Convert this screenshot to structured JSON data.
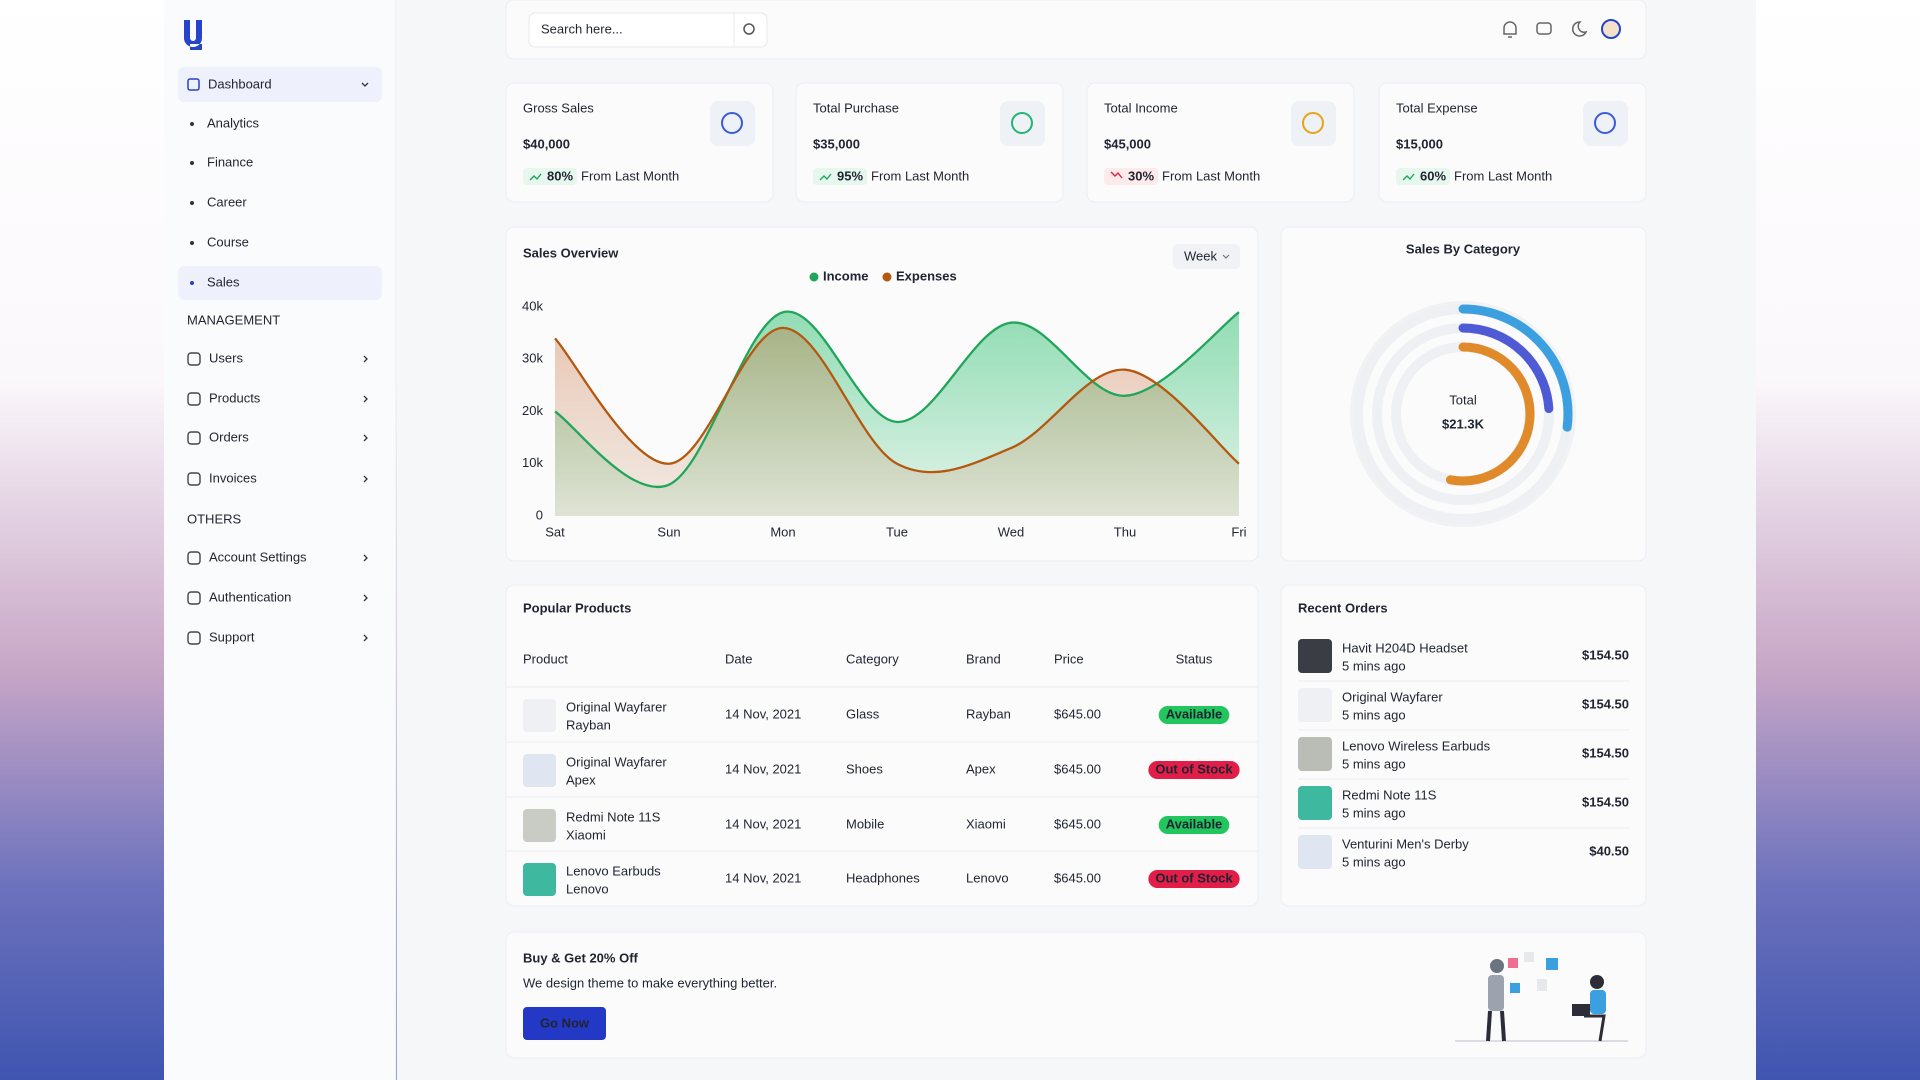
{
  "nav": {
    "dashboard": "Dashboard",
    "dashboard_items": [
      "Analytics",
      "Finance",
      "Career",
      "Course",
      "Sales"
    ],
    "management_heading": "MANAGEMENT",
    "management_items": [
      "Users",
      "Products",
      "Orders",
      "Invoices"
    ],
    "others_heading": "OTHERS",
    "others_items": [
      "Account Settings",
      "Authentication",
      "Support"
    ]
  },
  "header": {
    "search_placeholder": "Search here..."
  },
  "stats": [
    {
      "label": "Gross Sales",
      "value": "$40,000",
      "change": "80%",
      "trend": "up",
      "note": "From Last Month",
      "icon_color": "#3b5bdb"
    },
    {
      "label": "Total Purchase",
      "value": "$35,000",
      "change": "95%",
      "trend": "up",
      "note": "From Last Month",
      "icon_color": "#22b573"
    },
    {
      "label": "Total Income",
      "value": "$45,000",
      "change": "30%",
      "trend": "down",
      "note": "From Last Month",
      "icon_color": "#e8a317"
    },
    {
      "label": "Total Expense",
      "value": "$15,000",
      "change": "60%",
      "trend": "up",
      "note": "From Last Month",
      "icon_color": "#3b5bdb"
    }
  ],
  "chart_data": [
    {
      "type": "area",
      "title": "Sales Overview",
      "period": "Week",
      "x": [
        "Sat",
        "Sun",
        "Mon",
        "Tue",
        "Wed",
        "Thu",
        "Fri"
      ],
      "series": [
        {
          "name": "Income",
          "color": "#22a55a",
          "values": [
            20000,
            6000,
            39000,
            18000,
            37000,
            23000,
            39000
          ]
        },
        {
          "name": "Expenses",
          "color": "#b4580f",
          "values": [
            34000,
            10000,
            36000,
            10000,
            13000,
            28000,
            10000
          ]
        }
      ],
      "ylim": [
        0,
        40000
      ],
      "yticks": [
        0,
        {
          "value": 10000,
          "label": "10k"
        },
        {
          "value": 20000,
          "label": "20k"
        },
        {
          "value": 30000,
          "label": "30k"
        },
        {
          "value": 40000,
          "label": "40k"
        }
      ]
    },
    {
      "type": "donut",
      "title": "Sales By Category",
      "center_label": "Total",
      "total_label": "$21.3K",
      "values": [
        27,
        24,
        53
      ],
      "colors": [
        "#3b9fe0",
        "#4f5bd5",
        "#e08a2a"
      ]
    }
  ],
  "popular_products": {
    "title": "Popular Products",
    "columns": [
      "Product",
      "Date",
      "Category",
      "Brand",
      "Price",
      "Status"
    ],
    "rows": [
      {
        "name": "Original Wayfarer",
        "sub": "Rayban",
        "date": "14 Nov, 2021",
        "category": "Glass",
        "brand": "Rayban",
        "price": "$645.00",
        "status": "Available",
        "status_color": "#22c55e"
      },
      {
        "name": "Original Wayfarer",
        "sub": "Apex",
        "date": "14 Nov, 2021",
        "category": "Shoes",
        "brand": "Apex",
        "price": "$645.00",
        "status": "Out of Stock",
        "status_color": "#e11d48"
      },
      {
        "name": "Redmi Note 11S",
        "sub": "Xiaomi",
        "date": "14 Nov, 2021",
        "category": "Mobile",
        "brand": "Xiaomi",
        "price": "$645.00",
        "status": "Available",
        "status_color": "#22c55e"
      },
      {
        "name": "Lenovo Earbuds",
        "sub": "Lenovo",
        "date": "14 Nov, 2021",
        "category": "Headphones",
        "brand": "Lenovo",
        "price": "$645.00",
        "status": "Out of Stock",
        "status_color": "#e11d48"
      }
    ]
  },
  "recent_orders": {
    "title": "Recent Orders",
    "items": [
      {
        "name": "Havit H204D Headset",
        "time": "5 mins ago",
        "price": "$154.50"
      },
      {
        "name": "Original Wayfarer",
        "time": "5 mins ago",
        "price": "$154.50"
      },
      {
        "name": "Lenovo Wireless Earbuds",
        "time": "5 mins ago",
        "price": "$154.50"
      },
      {
        "name": "Redmi Note 11S",
        "time": "5 mins ago",
        "price": "$154.50"
      },
      {
        "name": "Venturini Men's Derby",
        "time": "5 mins ago",
        "price": "$40.50"
      }
    ]
  },
  "banner": {
    "title": "Buy & Get 20% Off",
    "text": "We design theme to make everything better.",
    "button": "Go Now"
  }
}
